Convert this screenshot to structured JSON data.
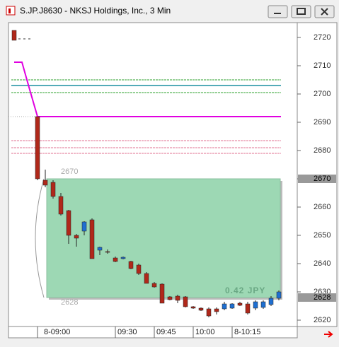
{
  "window_title": "S.JP.J8630 - NKSJ Holdings, Inc., 3 Min",
  "chart_data": {
    "type": "candlestick",
    "categories": [
      null,
      null,
      null,
      "8-09:00",
      null,
      null,
      null,
      null,
      null,
      null,
      null,
      null,
      null,
      "09:30",
      null,
      null,
      null,
      null,
      "09:45",
      null,
      null,
      null,
      null,
      "10:00",
      null,
      null,
      null,
      null,
      "8-10:15",
      null,
      null,
      null,
      null,
      null,
      null
    ],
    "series": [
      {
        "up_color": "#1f6fd1",
        "down_color": "#b0281a",
        "open": [
          2722.5,
          null,
          null,
          2692,
          2669.5,
          2668.75,
          2663.75,
          2658.75,
          2650,
          2651.5,
          2655.5,
          2644.75,
          2644.25,
          2642,
          2641.75,
          2640.75,
          2639.5,
          2636.5,
          2633,
          2632.75,
          2628.25,
          2628.5,
          2628.25,
          2624.75,
          2624.25,
          2624,
          2624,
          2624,
          2624.25,
          2626,
          2625.75,
          2624.25,
          2624.5,
          2625.5,
          2627.75
        ],
        "high": [
          2722.5,
          null,
          null,
          2692,
          2673.25,
          2669.5,
          2665,
          2659,
          2650.5,
          2655,
          2656,
          2646,
          2645,
          2642.5,
          2642.5,
          2641,
          2640,
          2637,
          2633.5,
          2633,
          2628.5,
          2629,
          2628.5,
          2625,
          2624.5,
          2624.5,
          2624.5,
          2626.5,
          2626,
          2626.5,
          2626.5,
          2627,
          2627,
          2628.5,
          2630.5
        ],
        "low": [
          2719,
          null,
          null,
          2669.5,
          2667,
          2663,
          2657,
          2647,
          2646,
          2650,
          2641.75,
          2643,
          2643.5,
          2640.5,
          2641.5,
          2638,
          2636,
          2633,
          2631.5,
          2626,
          2627,
          2626,
          2624.5,
          2624,
          2623.25,
          2621,
          2622,
          2623.5,
          2624,
          2625,
          2622,
          2623.5,
          2624,
          2625,
          2627
        ],
        "close": [
          2719,
          null,
          null,
          2670,
          2667.75,
          2663.75,
          2657.5,
          2650,
          2649,
          2654.75,
          2641.75,
          2645.75,
          2644,
          2640.75,
          2642.25,
          2638.25,
          2636.5,
          2633,
          2631.75,
          2626,
          2627.25,
          2627,
          2624.75,
          2624.25,
          2623.5,
          2621.5,
          2623,
          2625.75,
          2625.75,
          2625.25,
          2622.5,
          2626.5,
          2626.5,
          2627.75,
          2630
        ]
      }
    ],
    "line": {
      "color": "#e000e0",
      "values": [
        2711.25,
        2711.25,
        2701.5,
        2692,
        2692,
        2692,
        2692,
        2692,
        2692,
        2692,
        2692,
        2692,
        2692,
        2692,
        2692,
        2692,
        2692,
        2692,
        2692,
        2692,
        2692,
        2692,
        2692,
        2692,
        2692,
        2692,
        2692,
        2692,
        2692,
        2692,
        2692,
        2692,
        2692,
        2692,
        2692
      ]
    },
    "levels": [
      {
        "value": 2705,
        "color": "#2ca02c",
        "dash": true
      },
      {
        "value": 2703,
        "color": "#1a8fa0",
        "dash": false
      },
      {
        "value": 2700.5,
        "color": "#2ca02c",
        "dash": true
      },
      {
        "value": 2683.5,
        "color": "#e07090",
        "dash": true
      },
      {
        "value": 2681,
        "color": "#e07090",
        "dash": true
      },
      {
        "value": 2679,
        "color": "#e07090",
        "dash": true
      }
    ],
    "range_box": {
      "top": 2670,
      "bottom": 2628,
      "text": "0.42 JPY",
      "color": "#9dd8b4"
    },
    "ylim": [
      2617.75,
      2725.25
    ],
    "yticks": [
      2620,
      2630,
      2640,
      2650,
      2660,
      2670,
      2680,
      2690,
      2700,
      2710,
      2720
    ]
  }
}
